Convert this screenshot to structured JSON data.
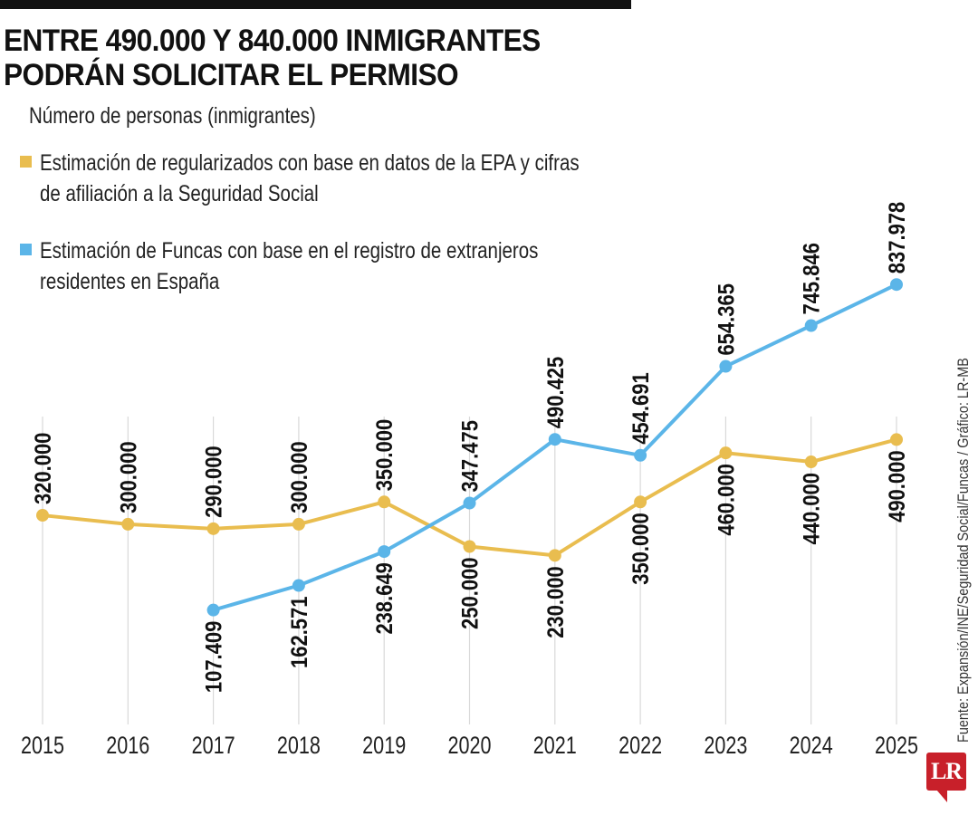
{
  "header": {
    "title_line1": "ENTRE 490.000 Y 840.000 INMIGRANTES",
    "title_line2": "PODRÁN SOLICITAR EL PERMISO",
    "subtitle": "Número de personas (inmigrantes)"
  },
  "legend": [
    {
      "label": "Estimación de regularizados con base en datos de la EPA y cifras\nde afiliación a la Seguridad Social",
      "color": "#e9bd4f"
    },
    {
      "label": "Estimación de Funcas con base en el registro de extranjeros\nresidentes en España",
      "color": "#5bb5e8"
    }
  ],
  "source": "Fuente: Expansión/INE/Seguridad Social/Funcas / Gráfico: LR-MB",
  "logo": "LR",
  "colors": {
    "gridline": "#d9d9d9",
    "yellow": "#e9bd4f",
    "blue": "#5bb5e8",
    "logo_red": "#c8202a"
  },
  "chart_data": {
    "type": "line",
    "title": "ENTRE 490.000 Y 840.000 INMIGRANTES PODRÁN SOLICITAR EL PERMISO",
    "subtitle": "Número de personas (inmigrantes)",
    "xlabel": "",
    "ylabel": "Número de personas (inmigrantes)",
    "x": [
      "2015",
      "2016",
      "2017",
      "2018",
      "2019",
      "2020",
      "2021",
      "2022",
      "2023",
      "2024",
      "2025"
    ],
    "ylim": [
      0,
      900000
    ],
    "grid": "vertical-only",
    "legend_position": "top-left",
    "series": [
      {
        "name": "Estimación de regularizados con base en datos de la EPA y cifras de afiliación a la Seguridad Social",
        "color": "#e9bd4f",
        "values": [
          320000,
          300000,
          290000,
          300000,
          350000,
          250000,
          230000,
          350000,
          460000,
          440000,
          490000
        ],
        "labels": [
          "320.000",
          "300.000",
          "290.000",
          "300.000",
          "350.000",
          "250.000",
          "230.000",
          "350.000",
          "460.000",
          "440.000",
          "490.000"
        ],
        "label_side": [
          "above",
          "above",
          "above",
          "above",
          "above",
          "below",
          "below",
          "below",
          "below",
          "below",
          "below"
        ]
      },
      {
        "name": "Estimación de Funcas con base en el registro de extranjeros residentes en España",
        "color": "#5bb5e8",
        "values": [
          null,
          null,
          107409,
          162571,
          238649,
          347475,
          490425,
          454691,
          654365,
          745846,
          837978
        ],
        "labels": [
          null,
          null,
          "107.409",
          "162.571",
          "238.649",
          "347.475",
          "490.425",
          "454.691",
          "654.365",
          "745.846",
          "837.978"
        ],
        "label_side": [
          null,
          null,
          "below",
          "below",
          "below",
          "above",
          "above",
          "above",
          "above",
          "above",
          "above"
        ]
      }
    ]
  }
}
